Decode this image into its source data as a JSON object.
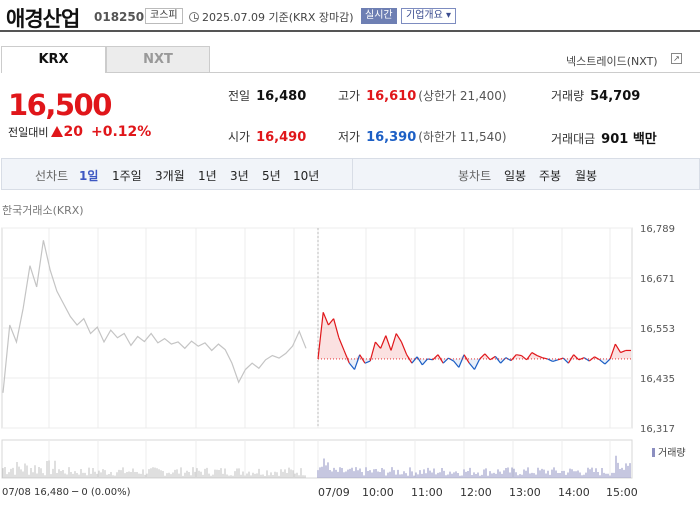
{
  "header": {
    "company_name": "애경산업",
    "stock_code": "018250",
    "market_badge": "코스피",
    "date_text": "2025.07.09 기준(KRX 장마감)",
    "realtime_label": "실시간",
    "overview_label": "기업개요 ▾"
  },
  "tabs": {
    "krx": "KRX",
    "nxt": "NXT"
  },
  "nxt_link": "넥스트레이드(NXT)",
  "price": {
    "current": "16,500",
    "change_label": "전일대비",
    "change_amount": "20",
    "change_percent": "+0.12%"
  },
  "stats": {
    "prev_close_label": "전일",
    "prev_close": "16,480",
    "high_label": "고가",
    "high": "16,610",
    "upper_limit": "(상한가 21,400)",
    "volume_label": "거래량",
    "volume": "54,709",
    "open_label": "시가",
    "open": "16,490",
    "low_label": "저가",
    "low": "16,390",
    "lower_limit": "(하한가 11,540)",
    "trade_value_label": "거래대금",
    "trade_value": "901 백만"
  },
  "toolbar": {
    "line_chart_label": "선차트",
    "periods": [
      "1일",
      "1주일",
      "3개월",
      "1년",
      "3년",
      "5년",
      "10년"
    ],
    "active_period": "1일",
    "candle_label": "봉차트",
    "candles": [
      "일봉",
      "주봉",
      "월봉"
    ]
  },
  "chart_data": {
    "type": "line",
    "title": "한국거래소(KRX)",
    "y_ticks": [
      "16,789",
      "16,671",
      "16,553",
      "16,435",
      "16,317"
    ],
    "ylim": [
      16317,
      16789
    ],
    "prev_close": 16480,
    "x_ticks": [
      "07/09",
      "10:00",
      "11:00",
      "12:00",
      "13:00",
      "14:00",
      "15:00"
    ],
    "prev_day_label": "07/08 16,480 ─ 0 (0.00%)",
    "volume_legend": "거래량",
    "prev_day_series": [
      16400,
      16560,
      16520,
      16600,
      16700,
      16650,
      16760,
      16690,
      16640,
      16610,
      16580,
      16560,
      16575,
      16540,
      16555,
      16520,
      16548,
      16530,
      16540,
      16512,
      16533,
      16521,
      16540,
      16518,
      16528,
      16515,
      16520,
      16505,
      16522,
      16510,
      16518,
      16500,
      16515,
      16502,
      16470,
      16425,
      16455,
      16470,
      16458,
      16478,
      16488,
      16482,
      16493,
      16510,
      16545,
      16505
    ],
    "today_series": [
      16480,
      16590,
      16560,
      16575,
      16530,
      16500,
      16470,
      16455,
      16490,
      16470,
      16475,
      16520,
      16505,
      16535,
      16500,
      16540,
      16520,
      16490,
      16470,
      16485,
      16466,
      16480,
      16478,
      16490,
      16470,
      16482,
      16475,
      16460,
      16490,
      16470,
      16455,
      16480,
      16492,
      16478,
      16486,
      16470,
      16483,
      16476,
      16490,
      16488,
      16478,
      16495,
      16488,
      16483,
      16480,
      16474,
      16478,
      16482,
      16470,
      16490,
      16478,
      16483,
      16475,
      16485,
      16478,
      16468,
      16480,
      16515,
      16495,
      16500,
      16500
    ]
  }
}
